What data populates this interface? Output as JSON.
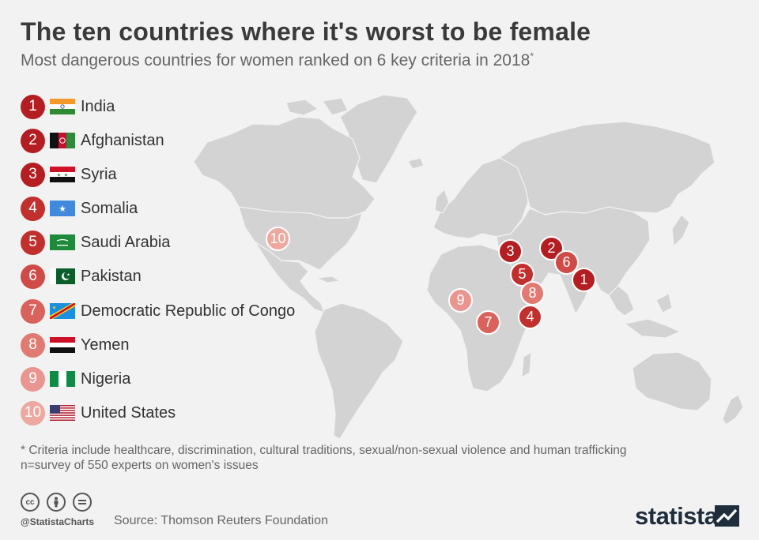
{
  "header": {
    "title": "The ten countries where it's worst to be female",
    "subtitle": "Most dangerous countries for women ranked on 6 key criteria in 2018",
    "subtitle_marker": "*"
  },
  "colors": {
    "dark_red": "#b41e22",
    "mid_red": "#cf4b47",
    "light_red": "#e8968f",
    "land": "#d3d3d3",
    "background": "#f2f2f2"
  },
  "rankings": [
    {
      "rank": "1",
      "country": "India",
      "flag": "india-flag",
      "color": "#b41e22"
    },
    {
      "rank": "2",
      "country": "Afghanistan",
      "flag": "afghanistan-flag",
      "color": "#b41e22"
    },
    {
      "rank": "3",
      "country": "Syria",
      "flag": "syria-flag",
      "color": "#b41e22"
    },
    {
      "rank": "4",
      "country": "Somalia",
      "flag": "somalia-flag",
      "color": "#c2302e"
    },
    {
      "rank": "5",
      "country": "Saudi Arabia",
      "flag": "saudi-arabia-flag",
      "color": "#c2302e"
    },
    {
      "rank": "6",
      "country": "Pakistan",
      "flag": "pakistan-flag",
      "color": "#cf4b47"
    },
    {
      "rank": "7",
      "country": "Democratic Republic of Congo",
      "flag": "drc-flag",
      "color": "#d9625c"
    },
    {
      "rank": "8",
      "country": "Yemen",
      "flag": "yemen-flag",
      "color": "#e07a73"
    },
    {
      "rank": "9",
      "country": "Nigeria",
      "flag": "nigeria-flag",
      "color": "#e8968f"
    },
    {
      "rank": "10",
      "country": "United States",
      "flag": "usa-flag",
      "color": "#eda89f"
    }
  ],
  "footnote": {
    "line1": "* Criteria include healthcare, discrimination, cultural traditions, sexual/non-sexual violence and human trafficking",
    "line2": "n=survey of 550 experts on women's issues"
  },
  "footer": {
    "handle": "@StatistaCharts",
    "source": "Source: Thomson Reuters Foundation",
    "brand": "statista",
    "license_icons": [
      "cc-icon",
      "by-icon",
      "nd-icon"
    ]
  }
}
